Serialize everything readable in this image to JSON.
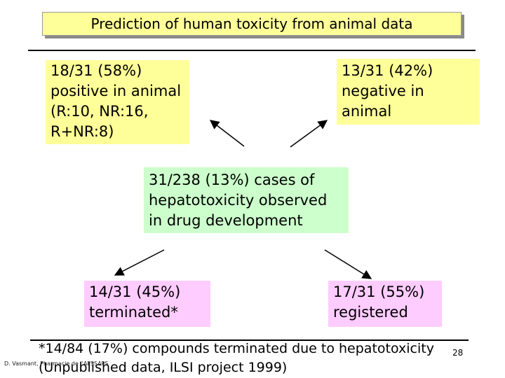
{
  "title": "Prediction of human toxicity from animal data",
  "positive_box": [
    "18/31 (58%)",
    "positive in animal",
    "(R:10, NR:16,",
    "R+NR:8)"
  ],
  "negative_box": [
    "13/31 (42%)",
    "negative in",
    "animal"
  ],
  "center_box": [
    "31/238 (13%) cases of",
    "hepatotoxicity observed",
    "in drug development"
  ],
  "terminated_box": [
    "14/31 (45%)",
    "terminated*"
  ],
  "registered_box": [
    "17/31 (55%)",
    "registered"
  ],
  "footnote": [
    "*14/84 (17%) compounds terminated due to hepatotoxicity",
    "(Unpublished data, ILSI project 1999)"
  ],
  "author_credit": "D. Vasmant, Pharmacie de l'AFSSAPS",
  "page_number": "28",
  "colors": {
    "title_bg": "#ffff99",
    "yellow_box": "#ffff99",
    "green_box": "#ccffcc",
    "pink_box": "#ffccff"
  }
}
